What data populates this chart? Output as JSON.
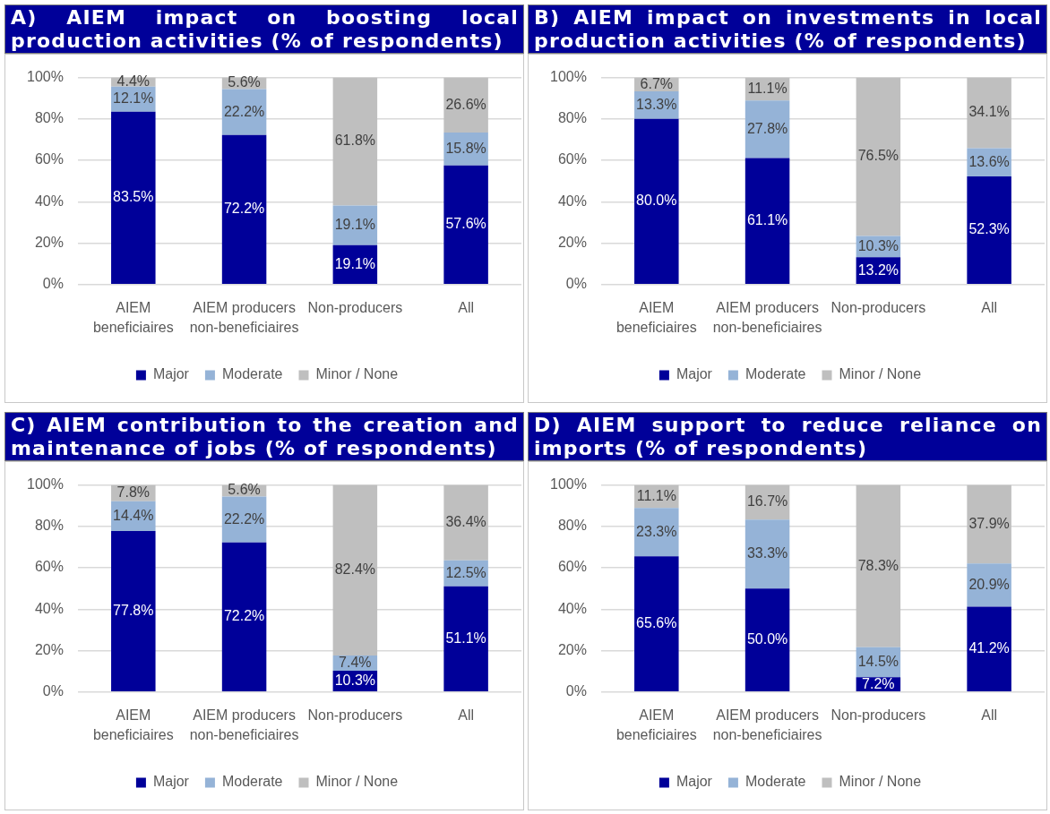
{
  "chart_data": [
    {
      "type": "bar",
      "title": "A) AIEM impact on boosting local production activities (% of respondents)",
      "categories": [
        "AIEM beneficiaires",
        "AIEM producers non-beneficiaires",
        "Non-producers",
        "All"
      ],
      "stacked": true,
      "ylim": [
        0,
        100
      ],
      "yticks": [
        {
          "value": 0,
          "label": "0%"
        },
        {
          "value": 20,
          "label": "20%"
        },
        {
          "value": 40,
          "label": "40%"
        },
        {
          "value": 60,
          "label": "60%"
        },
        {
          "value": 80,
          "label": "80%"
        },
        {
          "value": 100,
          "label": "100%"
        }
      ],
      "grid": "y",
      "legend": "bottom",
      "series": [
        {
          "name": "Major",
          "color": "#000099",
          "values": [
            83.5,
            72.2,
            19.1,
            57.6
          ],
          "value_labels": [
            "83.5%",
            "72.2%",
            "19.1%",
            "57.6%"
          ]
        },
        {
          "name": "Moderate",
          "color": "#95b3d7",
          "values": [
            12.1,
            22.2,
            19.1,
            15.8
          ],
          "value_labels": [
            "12.1%",
            "22.2%",
            "19.1%",
            "15.8%"
          ]
        },
        {
          "name": "Minor / None",
          "color": "#bfbfbf",
          "values": [
            4.4,
            5.6,
            61.8,
            26.6
          ],
          "value_labels": [
            "4.4%",
            "5.6%",
            "61.8%",
            "26.6%"
          ]
        }
      ]
    },
    {
      "type": "bar",
      "title": "B) AIEM impact on investments in local production activities (% of respondents)",
      "categories": [
        "AIEM beneficiaires",
        "AIEM producers non-beneficiaires",
        "Non-producers",
        "All"
      ],
      "stacked": true,
      "ylim": [
        0,
        100
      ],
      "yticks": [
        {
          "value": 0,
          "label": "0%"
        },
        {
          "value": 20,
          "label": "20%"
        },
        {
          "value": 40,
          "label": "40%"
        },
        {
          "value": 60,
          "label": "60%"
        },
        {
          "value": 80,
          "label": "80%"
        },
        {
          "value": 100,
          "label": "100%"
        }
      ],
      "grid": "y",
      "legend": "bottom",
      "series": [
        {
          "name": "Major",
          "color": "#000099",
          "values": [
            80.0,
            61.1,
            13.2,
            52.3
          ],
          "value_labels": [
            "80.0%",
            "61.1%",
            "13.2%",
            "52.3%"
          ]
        },
        {
          "name": "Moderate",
          "color": "#95b3d7",
          "values": [
            13.3,
            27.8,
            10.3,
            13.6
          ],
          "value_labels": [
            "13.3%",
            "27.8%",
            "10.3%",
            "13.6%"
          ]
        },
        {
          "name": "Minor / None",
          "color": "#bfbfbf",
          "values": [
            6.7,
            11.1,
            76.5,
            34.1
          ],
          "value_labels": [
            "6.7%",
            "11.1%",
            "76.5%",
            "34.1%"
          ]
        }
      ]
    },
    {
      "type": "bar",
      "title": "C) AIEM contribution to the creation and maintenance of jobs (% of respondents)",
      "categories": [
        "AIEM beneficiaires",
        "AIEM producers non-beneficiaires",
        "Non-producers",
        "All"
      ],
      "stacked": true,
      "ylim": [
        0,
        100
      ],
      "yticks": [
        {
          "value": 0,
          "label": "0%"
        },
        {
          "value": 20,
          "label": "20%"
        },
        {
          "value": 40,
          "label": "40%"
        },
        {
          "value": 60,
          "label": "60%"
        },
        {
          "value": 80,
          "label": "80%"
        },
        {
          "value": 100,
          "label": "100%"
        }
      ],
      "grid": "y",
      "legend": "bottom",
      "series": [
        {
          "name": "Major",
          "color": "#000099",
          "values": [
            77.8,
            72.2,
            10.3,
            51.1
          ],
          "value_labels": [
            "77.8%",
            "72.2%",
            "10.3%",
            "51.1%"
          ]
        },
        {
          "name": "Moderate",
          "color": "#95b3d7",
          "values": [
            14.4,
            22.2,
            7.4,
            12.5
          ],
          "value_labels": [
            "14.4%",
            "22.2%",
            "7.4%",
            "12.5%"
          ]
        },
        {
          "name": "Minor / None",
          "color": "#bfbfbf",
          "values": [
            7.8,
            5.6,
            82.4,
            36.4
          ],
          "value_labels": [
            "7.8%",
            "5.6%",
            "82.4%",
            "36.4%"
          ]
        }
      ]
    },
    {
      "type": "bar",
      "title": "D) AIEM support to reduce reliance on imports (% of respondents)",
      "categories": [
        "AIEM beneficiaires",
        "AIEM producers non-beneficiaires",
        "Non-producers",
        "All"
      ],
      "stacked": true,
      "ylim": [
        0,
        100
      ],
      "yticks": [
        {
          "value": 0,
          "label": "0%"
        },
        {
          "value": 20,
          "label": "20%"
        },
        {
          "value": 40,
          "label": "40%"
        },
        {
          "value": 60,
          "label": "60%"
        },
        {
          "value": 80,
          "label": "80%"
        },
        {
          "value": 100,
          "label": "100%"
        }
      ],
      "grid": "y",
      "legend": "bottom",
      "series": [
        {
          "name": "Major",
          "color": "#000099",
          "values": [
            65.6,
            50.0,
            7.2,
            41.2
          ],
          "value_labels": [
            "65.6%",
            "50.0%",
            "7.2%",
            "41.2%"
          ]
        },
        {
          "name": "Moderate",
          "color": "#95b3d7",
          "values": [
            23.3,
            33.3,
            14.5,
            20.9
          ],
          "value_labels": [
            "23.3%",
            "33.3%",
            "14.5%",
            "20.9%"
          ]
        },
        {
          "name": "Minor / None",
          "color": "#bfbfbf",
          "values": [
            11.1,
            16.7,
            78.3,
            37.9
          ],
          "value_labels": [
            "11.1%",
            "16.7%",
            "78.3%",
            "37.9%"
          ]
        }
      ]
    }
  ]
}
